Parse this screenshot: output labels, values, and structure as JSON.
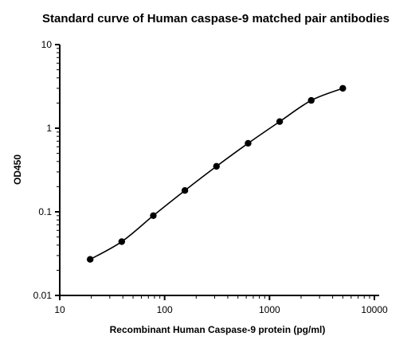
{
  "chart_data": {
    "type": "scatter",
    "title": "Standard curve of Human caspase-9 matched pair antibodies",
    "xlabel": "Recombinant Human Caspase-9 protein (pg/ml)",
    "ylabel": "OD450",
    "xscale": "log",
    "yscale": "log",
    "xlim": [
      10,
      10000
    ],
    "ylim": [
      0.01,
      10
    ],
    "xticks": [
      "10",
      "100",
      "1000",
      "10000"
    ],
    "yticks": [
      "0.01",
      "0.1",
      "1",
      "10"
    ],
    "grid": false,
    "legend": "none",
    "fit_line": true,
    "series": [
      {
        "x": [
          19.5,
          39,
          78,
          156,
          312,
          625,
          1250,
          2500,
          5000
        ],
        "y": [
          0.027,
          0.044,
          0.09,
          0.18,
          0.35,
          0.66,
          1.2,
          2.15,
          3.0
        ]
      }
    ]
  }
}
